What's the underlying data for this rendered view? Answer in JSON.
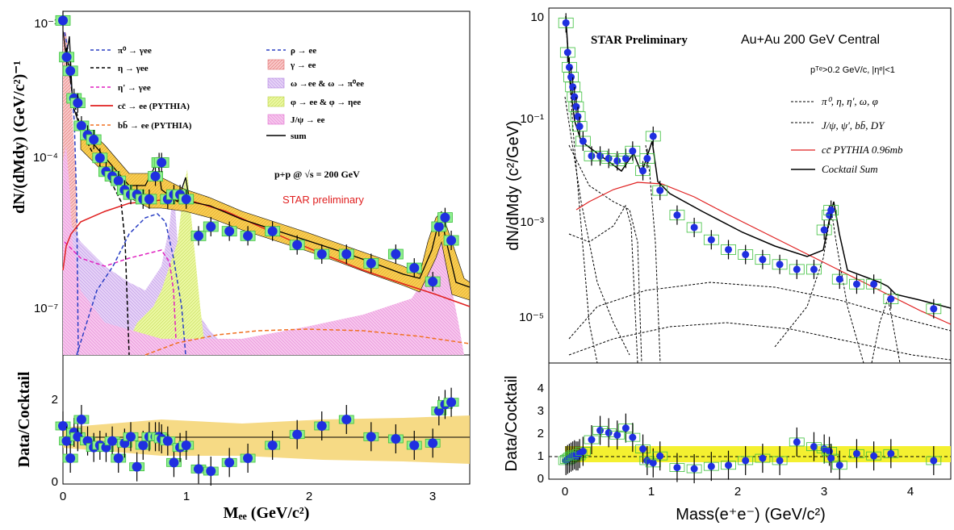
{
  "chart_data": [
    {
      "type": "line",
      "panel": "left",
      "ylabel": "dN/(dMdy) (GeV/c²)⁻¹",
      "xlabel": "Mₑₑ (GeV/c²)",
      "ratio_ylabel": "Data/Cocktail",
      "xlim": [
        0,
        3.3
      ],
      "ylim_log10": [
        -8.5,
        -1
      ],
      "y_tick_labels": [
        "10⁻¹",
        "10⁻⁴",
        "10⁻⁷"
      ],
      "x_tick_labels": [
        "0",
        "1",
        "2",
        "3"
      ],
      "ratio_ylim": [
        0,
        3
      ],
      "ratio_tick_labels": [
        "0",
        "2"
      ],
      "legend_left": [
        {
          "label": "π⁰ → γee",
          "color": "#2a3fc4",
          "style": "dashed"
        },
        {
          "label": "η → γee",
          "color": "#000000",
          "style": "dashed"
        },
        {
          "label": "η' → γee",
          "color": "#e020c0",
          "style": "dashed"
        },
        {
          "label": "cc̄ → ee (PYTHIA)",
          "color": "#e02020",
          "style": "solid"
        },
        {
          "label": "bb̄ → ee (PYTHIA)",
          "color": "#f07020",
          "style": "dashed"
        }
      ],
      "legend_right": [
        {
          "label": "ρ → ee",
          "color": "#2a3fc4",
          "style": "dashed"
        },
        {
          "label": "γ → ee",
          "color": "#f0a0a0",
          "style": "box"
        },
        {
          "label": "ω →ee & ω → π⁰ee",
          "color": "#d8b0f0",
          "style": "box"
        },
        {
          "label": "φ → ee & φ → ηee",
          "color": "#e0f080",
          "style": "box"
        },
        {
          "label": "J/ψ → ee",
          "color": "#f0a0e0",
          "style": "box"
        },
        {
          "label": "sum",
          "color": "#000000",
          "style": "solid"
        }
      ],
      "annotation_energy": "p+p @ √s = 200 GeV",
      "annotation_prelim": "STAR preliminary",
      "data": {
        "x": [
          0.0,
          0.03,
          0.06,
          0.09,
          0.12,
          0.15,
          0.2,
          0.25,
          0.3,
          0.35,
          0.4,
          0.45,
          0.5,
          0.55,
          0.6,
          0.65,
          0.7,
          0.75,
          0.78,
          0.8,
          0.85,
          0.9,
          0.95,
          1.0,
          1.1,
          1.2,
          1.35,
          1.5,
          1.7,
          1.9,
          2.1,
          2.3,
          2.5,
          2.7,
          2.85,
          3.0,
          3.05,
          3.1,
          3.15
        ],
        "log10y": [
          -1.2,
          -2.0,
          -2.3,
          -2.9,
          -3.0,
          -3.5,
          -3.7,
          -3.8,
          -4.2,
          -4.5,
          -4.6,
          -4.7,
          -4.9,
          -5.0,
          -5.0,
          -5.1,
          -5.1,
          -4.6,
          -4.3,
          -4.3,
          -5.1,
          -5.0,
          -5.0,
          -5.1,
          -5.9,
          -5.7,
          -5.8,
          -5.9,
          -5.8,
          -6.1,
          -6.3,
          -6.3,
          -6.5,
          -6.3,
          -6.6,
          -6.9,
          -5.7,
          -5.5,
          -6.0
        ],
        "ratio": [
          1.35,
          1.0,
          0.6,
          1.2,
          1.1,
          1.5,
          1.0,
          0.85,
          0.9,
          0.85,
          1.0,
          0.6,
          0.95,
          1.1,
          0.4,
          0.9,
          1.1,
          1.1,
          1.1,
          1.05,
          1.0,
          0.5,
          0.85,
          0.9,
          0.35,
          0.3,
          0.5,
          0.6,
          0.9,
          1.15,
          1.35,
          1.5,
          1.1,
          1.05,
          0.9,
          0.95,
          1.7,
          1.85,
          1.9
        ]
      }
    },
    {
      "type": "line",
      "panel": "right",
      "ylabel": "dN/dMdy (c²/GeV)",
      "xlabel": "Mass(e⁺e⁻) (GeV/c²)",
      "ratio_ylabel": "Data/Cocktail",
      "xlim": [
        -0.2,
        4.5
      ],
      "ylim_log10": [
        -5.9,
        1.3
      ],
      "y_tick_labels": [
        "10",
        "10⁻¹",
        "10⁻³",
        "10⁻⁵"
      ],
      "x_tick_labels": [
        "0",
        "1",
        "2",
        "3",
        "4"
      ],
      "ratio_ylim": [
        0,
        5
      ],
      "ratio_tick_labels": [
        "0",
        "1",
        "2",
        "3",
        "4"
      ],
      "title_left": "STAR Preliminary",
      "title_right": "Au+Au 200 GeV Central",
      "cut_label": "pᵀᵉ>0.2 GeV/c, |ηᵉ|<1",
      "legend": [
        {
          "label": "π⁰, η, η', ω, φ",
          "color": "#000000",
          "style": "dotted"
        },
        {
          "label": "J/ψ, ψ', bb̄, DY",
          "color": "#000000",
          "style": "dotted"
        },
        {
          "label": "cc̄ PYTHIA 0.96mb",
          "color": "#e02020",
          "style": "solid"
        },
        {
          "label": "Cocktail Sum",
          "color": "#000000",
          "style": "solid"
        }
      ],
      "data": {
        "x": [
          0.0,
          0.02,
          0.04,
          0.06,
          0.08,
          0.1,
          0.12,
          0.14,
          0.16,
          0.2,
          0.3,
          0.4,
          0.5,
          0.6,
          0.7,
          0.78,
          0.9,
          0.95,
          1.02,
          1.1,
          1.3,
          1.5,
          1.7,
          1.9,
          2.1,
          2.3,
          2.5,
          2.7,
          2.9,
          3.02,
          3.08,
          3.1,
          3.2,
          3.4,
          3.6,
          3.8,
          4.3
        ],
        "log10y": [
          1.0,
          0.4,
          0.1,
          -0.1,
          -0.3,
          -0.5,
          -0.7,
          -0.9,
          -1.1,
          -1.4,
          -1.7,
          -1.7,
          -1.75,
          -1.8,
          -1.75,
          -1.6,
          -2.0,
          -1.75,
          -1.3,
          -2.4,
          -2.9,
          -3.15,
          -3.4,
          -3.6,
          -3.7,
          -3.8,
          -3.9,
          -4.0,
          -4.0,
          -3.2,
          -2.9,
          -2.8,
          -4.2,
          -4.3,
          -4.3,
          -4.6,
          -4.8
        ],
        "ratio": [
          0.8,
          0.85,
          0.9,
          0.95,
          1.0,
          1.05,
          1.0,
          1.0,
          1.1,
          1.2,
          1.7,
          2.1,
          2.0,
          1.9,
          2.2,
          1.8,
          1.3,
          0.8,
          0.7,
          1.0,
          0.5,
          0.45,
          0.55,
          0.6,
          0.8,
          0.9,
          0.8,
          1.6,
          1.4,
          1.3,
          1.2,
          0.9,
          0.6,
          1.1,
          1.0,
          1.1,
          0.8
        ]
      }
    }
  ]
}
